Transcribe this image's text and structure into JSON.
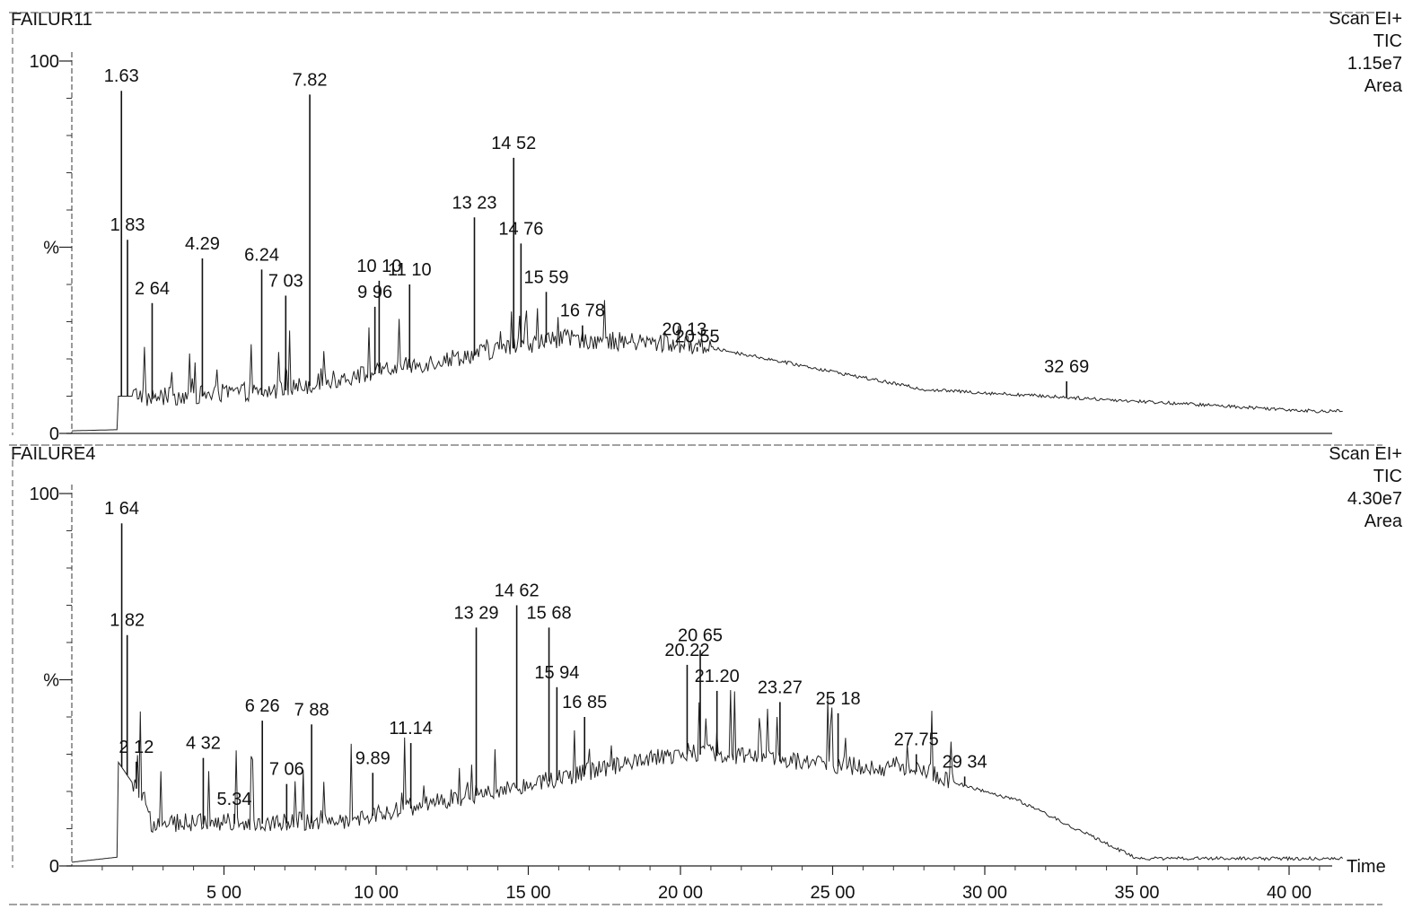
{
  "chart_data": {
    "type": "line",
    "xlabel": "Time",
    "xlim": [
      0,
      42
    ],
    "x_ticks": [
      {
        "value": 5,
        "label": "5 00"
      },
      {
        "value": 10,
        "label": "10 00"
      },
      {
        "value": 15,
        "label": "15 00"
      },
      {
        "value": 20,
        "label": "20 00"
      },
      {
        "value": 25,
        "label": "25 00"
      },
      {
        "value": 30,
        "label": "30 00"
      },
      {
        "value": 35,
        "label": "35 00"
      },
      {
        "value": 40,
        "label": "40 00"
      }
    ],
    "panels": [
      {
        "name": "FAILUR11",
        "info": [
          "Scan EI+",
          "TIC",
          "1.15e7",
          "Area"
        ],
        "ylim": [
          0,
          100
        ],
        "y_ticks": [
          {
            "value": 0,
            "label": "0"
          },
          {
            "value": 50,
            "label": "%"
          },
          {
            "value": 100,
            "label": "100"
          }
        ],
        "peaks": [
          {
            "label": "1.63",
            "x": 1.63,
            "y": 92
          },
          {
            "label": "1 83",
            "x": 1.83,
            "y": 52
          },
          {
            "label": "2 64",
            "x": 2.64,
            "y": 35
          },
          {
            "label": "4.29",
            "x": 4.29,
            "y": 47
          },
          {
            "label": "6.24",
            "x": 6.24,
            "y": 44
          },
          {
            "label": "7 03",
            "x": 7.03,
            "y": 37
          },
          {
            "label": "7.82",
            "x": 7.82,
            "y": 91
          },
          {
            "label": "9 96",
            "x": 9.96,
            "y": 34
          },
          {
            "label": "10 10",
            "x": 10.1,
            "y": 41
          },
          {
            "label": "11 10",
            "x": 11.1,
            "y": 40
          },
          {
            "label": "13 23",
            "x": 13.23,
            "y": 58
          },
          {
            "label": "14 52",
            "x": 14.52,
            "y": 74
          },
          {
            "label": "14 76",
            "x": 14.76,
            "y": 51
          },
          {
            "label": "15 59",
            "x": 15.59,
            "y": 38
          },
          {
            "label": "16 78",
            "x": 16.78,
            "y": 29
          },
          {
            "label": "20 13",
            "x": 20.13,
            "y": 24
          },
          {
            "label": "20 55",
            "x": 20.55,
            "y": 22
          },
          {
            "label": "32 69",
            "x": 32.69,
            "y": 14
          }
        ]
      },
      {
        "name": "FAILURE4",
        "info": [
          "Scan EI+",
          "TIC",
          "4.30e7",
          "Area"
        ],
        "ylim": [
          0,
          100
        ],
        "y_ticks": [
          {
            "value": 0,
            "label": "0"
          },
          {
            "value": 50,
            "label": "%"
          },
          {
            "value": 100,
            "label": "100"
          }
        ],
        "peaks": [
          {
            "label": "1 64",
            "x": 1.64,
            "y": 92
          },
          {
            "label": "1 82",
            "x": 1.82,
            "y": 62
          },
          {
            "label": "2 12",
            "x": 2.12,
            "y": 28
          },
          {
            "label": "4 32",
            "x": 4.32,
            "y": 29
          },
          {
            "label": "5.34",
            "x": 5.34,
            "y": 14
          },
          {
            "label": "6 26",
            "x": 6.26,
            "y": 39
          },
          {
            "label": "7 06",
            "x": 7.06,
            "y": 22
          },
          {
            "label": "7 88",
            "x": 7.88,
            "y": 38
          },
          {
            "label": "9.89",
            "x": 9.89,
            "y": 25
          },
          {
            "label": "11.14",
            "x": 11.14,
            "y": 33
          },
          {
            "label": "13 29",
            "x": 13.29,
            "y": 64
          },
          {
            "label": "14 62",
            "x": 14.62,
            "y": 70
          },
          {
            "label": "15 68",
            "x": 15.68,
            "y": 64
          },
          {
            "label": "15 94",
            "x": 15.94,
            "y": 48
          },
          {
            "label": "16 85",
            "x": 16.85,
            "y": 40
          },
          {
            "label": "20.22",
            "x": 20.22,
            "y": 54
          },
          {
            "label": "20 65",
            "x": 20.65,
            "y": 58
          },
          {
            "label": "21.20",
            "x": 21.2,
            "y": 47
          },
          {
            "label": "23.27",
            "x": 23.27,
            "y": 44
          },
          {
            "label": "25 18",
            "x": 25.18,
            "y": 41
          },
          {
            "label": "27.75",
            "x": 27.75,
            "y": 30
          },
          {
            "label": "29 34",
            "x": 29.34,
            "y": 24
          }
        ]
      }
    ]
  }
}
